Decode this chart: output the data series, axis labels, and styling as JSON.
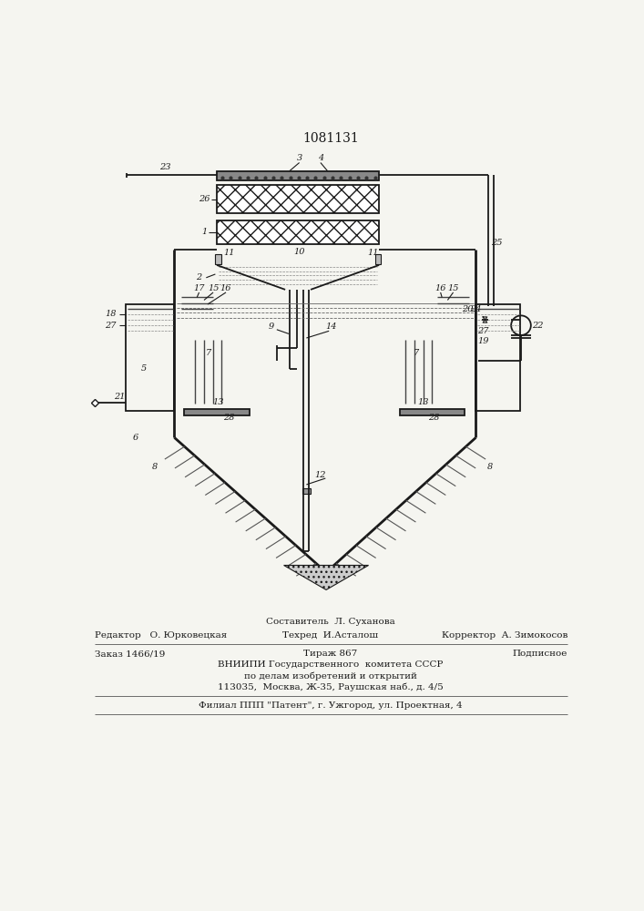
{
  "patent_number": "1081131",
  "bg_color": "#f5f5f0",
  "line_color": "#1a1a1a",
  "sestavitel_line": "Составитель  Л. Суханова",
  "footer_lines": [
    {
      "left": "Редактор   О. Юрковецкая",
      "center": "Техред  И.Асталош",
      "right": "Корректор  А. Зимокосов"
    },
    {
      "left": "Заказ 1466/19",
      "center": "Тираж 867",
      "right": "Подписное"
    },
    {
      "center": "ВНИИПИ Государственного  комитета СССР"
    },
    {
      "center": "по делам изобретений и открытий"
    },
    {
      "center": "113035,  Москва, Ж-35, Раушская наб., д. 4/5"
    },
    {
      "center": "Филиал ППП \"Патент\", г. Ужгород, ул. Проектная, 4"
    }
  ]
}
